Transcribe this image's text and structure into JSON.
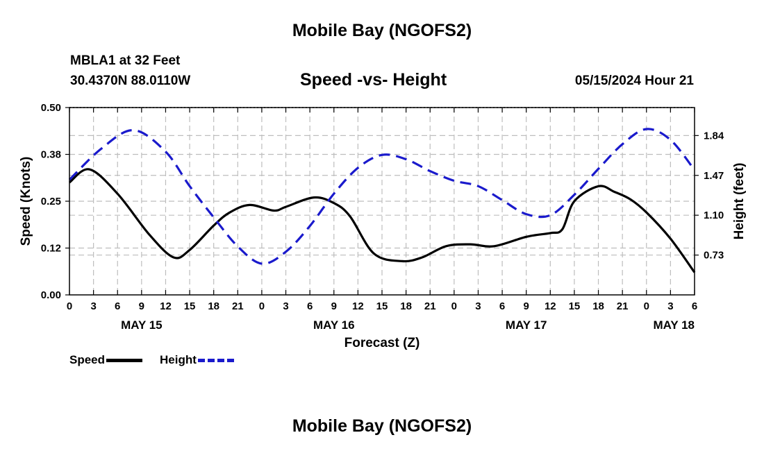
{
  "header": {
    "title": "Mobile Bay (NGOFS2)",
    "station": "MBLA1 at 32 Feet",
    "coords": "30.4370N  88.0110W",
    "subtitle": "Speed -vs- Height",
    "datetime": "05/15/2024 Hour 21"
  },
  "footer": {
    "title": "Mobile Bay (NGOFS2)"
  },
  "legend": {
    "speed_label": "Speed",
    "height_label": "Height"
  },
  "colors": {
    "speed": "#000000",
    "height": "#1a1acc",
    "grid": "#bdbdbd"
  },
  "chart_data": {
    "type": "line",
    "title": "Speed -vs- Height",
    "xlabel": "Forecast (Z)",
    "ylabel": "Speed (Knots)",
    "y2label": "Height (feet)",
    "x_unit": "hours from May 15 00Z",
    "xlim": [
      0,
      78
    ],
    "ylim": [
      0,
      0.5
    ],
    "y2lim": [
      0.36,
      2.1
    ],
    "x_ticks": [
      0,
      3,
      6,
      9,
      12,
      15,
      18,
      21,
      24,
      27,
      30,
      33,
      36,
      39,
      42,
      45,
      48,
      51,
      54,
      57,
      60,
      63,
      66,
      69,
      72,
      75,
      78
    ],
    "x_tick_labels": [
      "0",
      "3",
      "6",
      "9",
      "12",
      "15",
      "18",
      "21",
      "0",
      "3",
      "6",
      "9",
      "12",
      "15",
      "18",
      "21",
      "0",
      "3",
      "6",
      "9",
      "12",
      "15",
      "18",
      "21",
      "0",
      "3",
      "6"
    ],
    "day_ticks": [
      9,
      33,
      57,
      81
    ],
    "day_labels": [
      "MAY 15",
      "MAY 16",
      "MAY 17",
      "MAY 18"
    ],
    "y_ticks": [
      0,
      0.125,
      0.25,
      0.375,
      0.5
    ],
    "y_tick_labels": [
      "0.00",
      "0.12",
      "0.25",
      "0.38",
      "0.50"
    ],
    "y2_ticks": [
      0.73,
      1.1,
      1.47,
      1.84
    ],
    "y2_tick_labels": [
      "0.73",
      "1.10",
      "1.47",
      "1.84"
    ],
    "series": [
      {
        "name": "Speed",
        "axis": "left",
        "style": "solid",
        "x": [
          0,
          2.5,
          6,
          10,
          13,
          15,
          18,
          20,
          22.5,
          25.5,
          27,
          30.5,
          33,
          35,
          38,
          41.5,
          44,
          47,
          50,
          53,
          57,
          60,
          61.5,
          63,
          66,
          68,
          70,
          72,
          75,
          78
        ],
        "y": [
          0.3,
          0.335,
          0.27,
          0.16,
          0.1,
          0.12,
          0.185,
          0.22,
          0.24,
          0.225,
          0.235,
          0.26,
          0.245,
          0.21,
          0.11,
          0.09,
          0.1,
          0.13,
          0.135,
          0.13,
          0.155,
          0.165,
          0.175,
          0.25,
          0.29,
          0.275,
          0.255,
          0.22,
          0.15,
          0.06
        ]
      },
      {
        "name": "Height",
        "axis": "right",
        "style": "dashed",
        "x": [
          0,
          4,
          8,
          12,
          15,
          18,
          21,
          24,
          27,
          30,
          33,
          36,
          39,
          42,
          45,
          48,
          51,
          54,
          57,
          60,
          63,
          66,
          69,
          72,
          75,
          78
        ],
        "y": [
          1.43,
          1.72,
          1.89,
          1.69,
          1.37,
          1.08,
          0.81,
          0.65,
          0.76,
          1.0,
          1.3,
          1.54,
          1.66,
          1.62,
          1.51,
          1.42,
          1.37,
          1.24,
          1.11,
          1.1,
          1.29,
          1.53,
          1.76,
          1.9,
          1.8,
          1.52
        ]
      }
    ]
  }
}
